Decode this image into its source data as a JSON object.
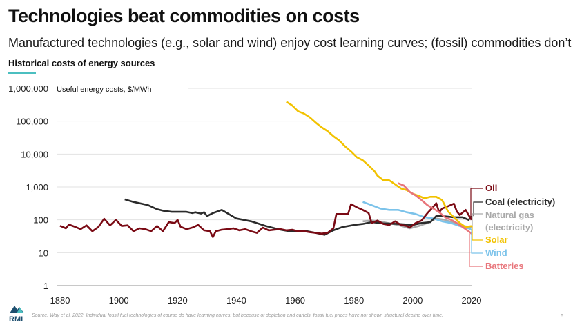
{
  "header": {
    "title": "Technologies beat commodities on costs",
    "subtitle": "Manufactured technologies (e.g., solar and wind) enjoy cost learning curves; (fossil) commodities don’t",
    "chart_title": "Historical costs of energy sources"
  },
  "footer": {
    "source": "Source: Way et al. 2022. Individual fossil fuel technologies of course do have learning curves; but because of depletion and cartels, fossil fuel prices have not shown structural decline over time.",
    "page_number": "6",
    "logo_text": "RMI"
  },
  "colors": {
    "accent": "#4bbfc0",
    "oil": "#7a0a14",
    "coal": "#2b2b2b",
    "gas": "#a9a9a9",
    "solar": "#f2c200",
    "wind": "#7cc3ea",
    "batteries": "#e8747a"
  },
  "chart_data": {
    "type": "line",
    "title": "Historical costs of energy sources",
    "ylabel": "Useful energy costs, $/MWh",
    "xlabel": "",
    "yscale": "log",
    "ylim": [
      1,
      1000000
    ],
    "xlim": [
      1880,
      2020
    ],
    "grid": true,
    "legend": "right (direct labels)",
    "y_ticks": [
      {
        "value": 1,
        "label": "1"
      },
      {
        "value": 10,
        "label": "10"
      },
      {
        "value": 100,
        "label": "100"
      },
      {
        "value": 1000,
        "label": "1,000"
      },
      {
        "value": 10000,
        "label": "10,000"
      },
      {
        "value": 100000,
        "label": "100,000"
      },
      {
        "value": 1000000,
        "label": "1,000,000"
      }
    ],
    "x_ticks": [
      "1880",
      "1900",
      "1920",
      "1940",
      "1960",
      "1980",
      "2000",
      "2020"
    ],
    "series": [
      {
        "name": "Oil",
        "key": "oil",
        "x": [
          1880,
          1882,
          1883,
          1885,
          1887,
          1889,
          1891,
          1893,
          1895,
          1897,
          1899,
          1901,
          1903,
          1905,
          1907,
          1909,
          1911,
          1913,
          1915,
          1917,
          1919,
          1920,
          1921,
          1923,
          1925,
          1927,
          1929,
          1931,
          1932,
          1933,
          1935,
          1937,
          1939,
          1941,
          1943,
          1945,
          1947,
          1949,
          1951,
          1953,
          1955,
          1957,
          1959,
          1961,
          1963,
          1965,
          1967,
          1969,
          1971,
          1973,
          1974,
          1976,
          1978,
          1979,
          1981,
          1983,
          1985,
          1986,
          1988,
          1990,
          1992,
          1994,
          1996,
          1998,
          1999,
          2001,
          2003,
          2005,
          2007,
          2008,
          2009,
          2010,
          2012,
          2014,
          2015,
          2016,
          2018,
          2019,
          2020
        ],
        "values": [
          66,
          55,
          72,
          62,
          52,
          68,
          45,
          60,
          108,
          68,
          100,
          65,
          68,
          45,
          55,
          52,
          45,
          65,
          45,
          85,
          80,
          100,
          62,
          52,
          58,
          70,
          48,
          45,
          30,
          45,
          50,
          52,
          55,
          48,
          52,
          45,
          40,
          58,
          48,
          50,
          52,
          48,
          50,
          45,
          45,
          42,
          40,
          38,
          40,
          55,
          150,
          150,
          150,
          300,
          240,
          200,
          160,
          80,
          95,
          75,
          70,
          90,
          70,
          65,
          58,
          80,
          95,
          160,
          250,
          320,
          170,
          220,
          260,
          310,
          180,
          140,
          200,
          140,
          100
        ]
      },
      {
        "name": "Coal (electricity)",
        "key": "coal",
        "x": [
          1902,
          1905,
          1910,
          1913,
          1915,
          1918,
          1920,
          1923,
          1925,
          1926,
          1928,
          1929,
          1930,
          1932,
          1935,
          1940,
          1945,
          1950,
          1955,
          1958,
          1961,
          1964,
          1967,
          1970,
          1973,
          1976,
          1980,
          1983,
          1986,
          1990,
          1995,
          2000,
          2003,
          2006,
          2008,
          2010,
          2014,
          2017,
          2019,
          2020
        ],
        "values": [
          420,
          350,
          280,
          210,
          190,
          175,
          175,
          175,
          160,
          170,
          155,
          170,
          130,
          160,
          200,
          110,
          90,
          65,
          50,
          45,
          45,
          45,
          40,
          35,
          48,
          60,
          70,
          75,
          85,
          78,
          75,
          70,
          80,
          85,
          130,
          130,
          120,
          120,
          100,
          130
        ]
      },
      {
        "name": "Natural gas (electricity)",
        "key": "gas",
        "x": [
          1983,
          1986,
          1990,
          1995,
          1999,
          2002,
          2005,
          2008,
          2011,
          2014,
          2017,
          2020
        ],
        "values": [
          90,
          95,
          85,
          70,
          55,
          65,
          80,
          110,
          100,
          80,
          65,
          60
        ]
      },
      {
        "name": "Solar",
        "key": "solar",
        "x": [
          1957,
          1959,
          1961,
          1963,
          1965,
          1967,
          1969,
          1971,
          1973,
          1975,
          1977,
          1979,
          1981,
          1983,
          1985,
          1987,
          1988,
          1990,
          1992,
          1994,
          1996,
          1998,
          2000,
          2002,
          2004,
          2006,
          2008,
          2010,
          2012,
          2014,
          2016,
          2018,
          2020
        ],
        "values": [
          390000,
          300000,
          200000,
          170000,
          130000,
          90000,
          65000,
          50000,
          35000,
          26000,
          17000,
          12000,
          8000,
          6500,
          4500,
          3000,
          2200,
          1600,
          1600,
          1200,
          900,
          800,
          620,
          540,
          450,
          500,
          500,
          400,
          180,
          120,
          80,
          60,
          65
        ]
      },
      {
        "name": "Wind",
        "key": "wind",
        "x": [
          1983,
          1986,
          1989,
          1992,
          1995,
          1998,
          2001,
          2004,
          2007,
          2010,
          2013,
          2016,
          2019,
          2020
        ],
        "values": [
          350,
          280,
          220,
          200,
          200,
          170,
          150,
          120,
          110,
          90,
          80,
          65,
          55,
          50
        ]
      },
      {
        "name": "Batteries",
        "key": "batteries",
        "x": [
          1995,
          1997,
          1999,
          2001,
          2003,
          2005,
          2007,
          2009,
          2011,
          2013,
          2015,
          2017,
          2019,
          2020
        ],
        "values": [
          1300,
          1100,
          700,
          550,
          400,
          280,
          220,
          170,
          120,
          100,
          80,
          60,
          45,
          38
        ]
      }
    ],
    "labels": [
      {
        "series": "Oil",
        "text": "Oil"
      },
      {
        "series": "Coal (electricity)",
        "text": "Coal (electricity)"
      },
      {
        "series": "Natural gas (electricity)",
        "text": "Natural gas\n(electricity)",
        "lines": [
          "Natural gas",
          "(electricity)"
        ]
      },
      {
        "series": "Solar",
        "text": "Solar"
      },
      {
        "series": "Wind",
        "text": "Wind"
      },
      {
        "series": "Batteries",
        "text": "Batteries"
      }
    ]
  }
}
